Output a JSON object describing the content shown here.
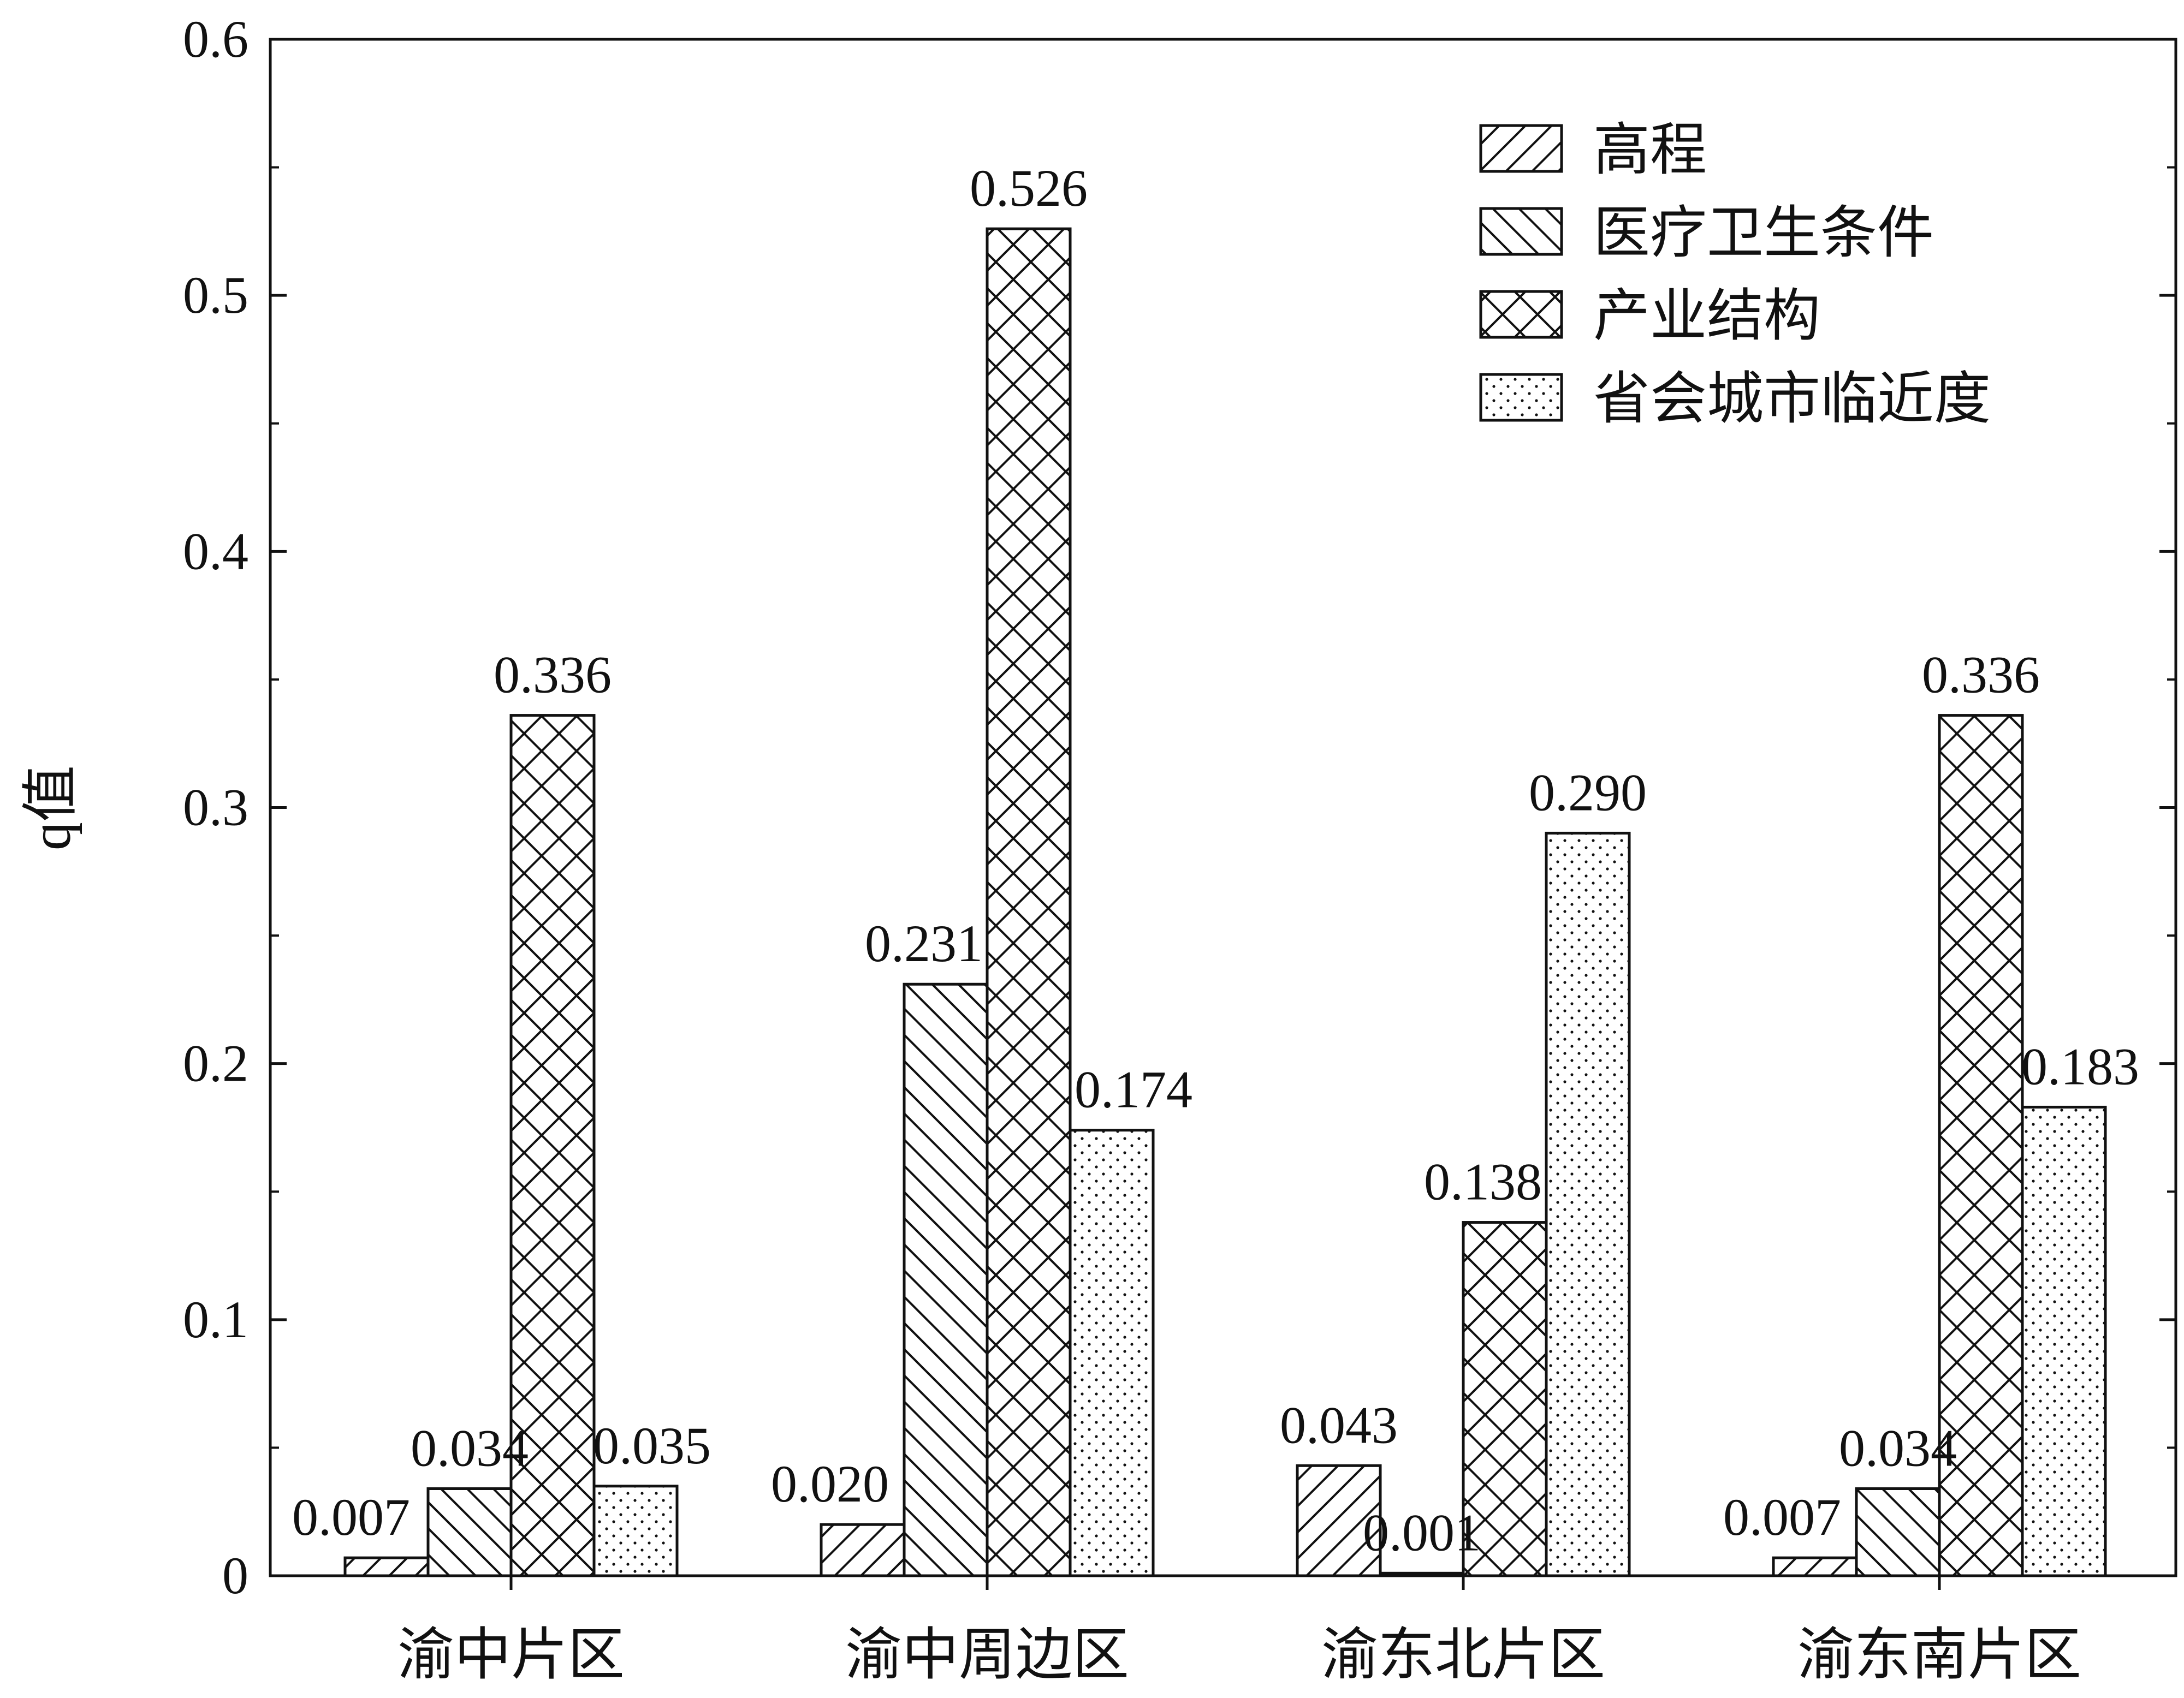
{
  "chart_data": {
    "type": "bar",
    "title": "",
    "xlabel": "",
    "ylabel": "q值",
    "ylim": [
      0,
      0.6
    ],
    "yticks": [
      "0",
      "0.1",
      "0.2",
      "0.3",
      "0.4",
      "0.5",
      "0.6"
    ],
    "grid": false,
    "legend_position": "top-right",
    "categories": [
      "渝中片区",
      "渝中周边区",
      "渝东北片区",
      "渝东南片区"
    ],
    "series": [
      {
        "name": "高程",
        "pattern": "diagonal-up",
        "values": [
          0.007,
          0.02,
          0.043,
          0.007
        ],
        "labels": [
          "0.007",
          "0.020",
          "0.043",
          "0.007"
        ]
      },
      {
        "name": "医疗卫生条件",
        "pattern": "diagonal-down",
        "values": [
          0.034,
          0.231,
          0.001,
          0.034
        ],
        "labels": [
          "0.034",
          "0.231",
          "0.001",
          "0.034"
        ]
      },
      {
        "name": "产业结构",
        "pattern": "crosshatch",
        "values": [
          0.336,
          0.526,
          0.138,
          0.336
        ],
        "labels": [
          "0.336",
          "0.526",
          "0.138",
          "0.336"
        ]
      },
      {
        "name": "省会城市临近度",
        "pattern": "dots",
        "values": [
          0.035,
          0.174,
          0.29,
          0.183
        ],
        "labels": [
          "0.035",
          "0.174",
          "0.290",
          "0.183"
        ]
      }
    ],
    "colors": {
      "bar_fill": "#ffffff",
      "stroke": "#111111",
      "text": "#111111"
    }
  }
}
